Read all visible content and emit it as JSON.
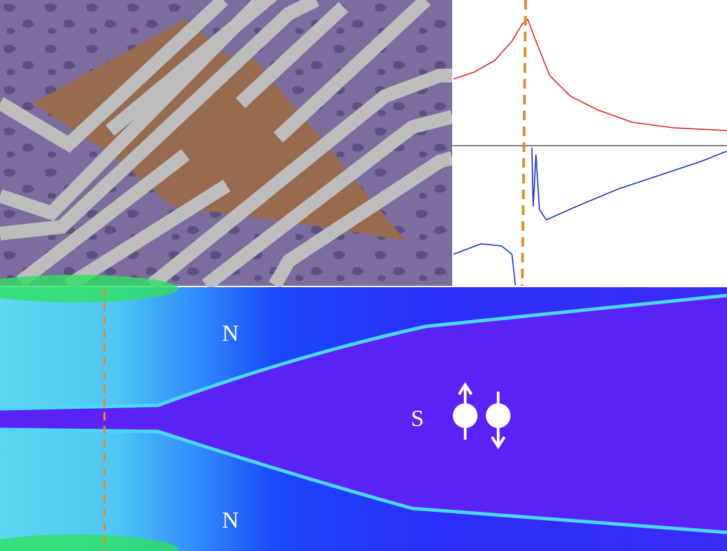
{
  "labels": {
    "top_n": "N",
    "s": "S",
    "bottom_n": "N"
  }
}
